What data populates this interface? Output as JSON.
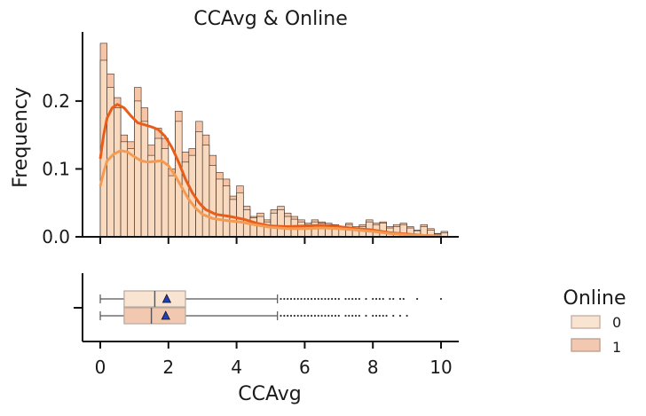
{
  "chart_data": {
    "type": "histogram+kde+boxplot",
    "title": "CCAvg & Online",
    "xlabel": "CCAvg",
    "ylabel": "Frequency",
    "xlim": [
      -0.5,
      10.5
    ],
    "ylim": [
      0,
      0.3
    ],
    "x_ticks": [
      0,
      2,
      4,
      6,
      8,
      10
    ],
    "y_ticks": [
      0.0,
      0.1,
      0.2
    ],
    "legend": {
      "title": "Online",
      "placement": "right",
      "entries": [
        {
          "label": "0",
          "color": "#f9e4d2"
        },
        {
          "label": "1",
          "color": "#f2c8b0"
        }
      ]
    },
    "histogram": {
      "bin_width": 0.2,
      "bin_start": 0,
      "series": [
        {
          "name": "1",
          "color": "#f7c2a0",
          "values": [
            0.285,
            0.24,
            0.205,
            0.15,
            0.14,
            0.22,
            0.19,
            0.135,
            0.16,
            0.145,
            0.1,
            0.185,
            0.125,
            0.13,
            0.17,
            0.15,
            0.12,
            0.095,
            0.085,
            0.06,
            0.075,
            0.045,
            0.03,
            0.035,
            0.025,
            0.04,
            0.045,
            0.035,
            0.03,
            0.025,
            0.02,
            0.025,
            0.022,
            0.02,
            0.018,
            0.015,
            0.02,
            0.015,
            0.018,
            0.025,
            0.02,
            0.022,
            0.015,
            0.018,
            0.02,
            0.015,
            0.01,
            0.018,
            0.012,
            0.005,
            0.008
          ]
        },
        {
          "name": "0",
          "color": "#f9e0c8",
          "values": [
            0.26,
            0.22,
            0.19,
            0.14,
            0.13,
            0.2,
            0.17,
            0.12,
            0.145,
            0.13,
            0.09,
            0.17,
            0.11,
            0.12,
            0.155,
            0.135,
            0.105,
            0.085,
            0.075,
            0.055,
            0.065,
            0.04,
            0.028,
            0.03,
            0.022,
            0.035,
            0.04,
            0.03,
            0.026,
            0.022,
            0.018,
            0.022,
            0.02,
            0.018,
            0.015,
            0.013,
            0.018,
            0.013,
            0.015,
            0.022,
            0.018,
            0.02,
            0.013,
            0.015,
            0.018,
            0.013,
            0.009,
            0.015,
            0.01,
            0.004,
            0.006
          ]
        }
      ]
    },
    "kde": [
      {
        "name": "1",
        "color": "#e85d1a",
        "points": [
          [
            0,
            0.115
          ],
          [
            0.1,
            0.15
          ],
          [
            0.2,
            0.175
          ],
          [
            0.35,
            0.19
          ],
          [
            0.5,
            0.195
          ],
          [
            0.7,
            0.19
          ],
          [
            0.9,
            0.178
          ],
          [
            1.1,
            0.168
          ],
          [
            1.3,
            0.165
          ],
          [
            1.5,
            0.162
          ],
          [
            1.7,
            0.158
          ],
          [
            1.9,
            0.148
          ],
          [
            2.1,
            0.132
          ],
          [
            2.3,
            0.11
          ],
          [
            2.5,
            0.085
          ],
          [
            2.7,
            0.065
          ],
          [
            2.9,
            0.05
          ],
          [
            3.1,
            0.04
          ],
          [
            3.4,
            0.033
          ],
          [
            3.8,
            0.03
          ],
          [
            4.2,
            0.026
          ],
          [
            4.6,
            0.02
          ],
          [
            5.0,
            0.016
          ],
          [
            5.5,
            0.015
          ],
          [
            6.0,
            0.016
          ],
          [
            6.5,
            0.017
          ],
          [
            7.0,
            0.015
          ],
          [
            7.5,
            0.012
          ],
          [
            8.0,
            0.01
          ],
          [
            8.5,
            0.006
          ],
          [
            9.0,
            0.004
          ],
          [
            9.5,
            0.002
          ],
          [
            10.0,
            0.001
          ]
        ]
      },
      {
        "name": "0",
        "color": "#f49a52",
        "points": [
          [
            0,
            0.075
          ],
          [
            0.1,
            0.095
          ],
          [
            0.2,
            0.112
          ],
          [
            0.4,
            0.122
          ],
          [
            0.6,
            0.127
          ],
          [
            0.8,
            0.125
          ],
          [
            1.0,
            0.118
          ],
          [
            1.2,
            0.112
          ],
          [
            1.4,
            0.11
          ],
          [
            1.6,
            0.111
          ],
          [
            1.8,
            0.112
          ],
          [
            2.0,
            0.105
          ],
          [
            2.2,
            0.09
          ],
          [
            2.4,
            0.072
          ],
          [
            2.6,
            0.055
          ],
          [
            2.8,
            0.042
          ],
          [
            3.0,
            0.033
          ],
          [
            3.3,
            0.027
          ],
          [
            3.7,
            0.024
          ],
          [
            4.1,
            0.022
          ],
          [
            4.5,
            0.018
          ],
          [
            5.0,
            0.014
          ],
          [
            5.5,
            0.012
          ],
          [
            6.0,
            0.012
          ],
          [
            6.5,
            0.013
          ],
          [
            7.0,
            0.012
          ],
          [
            7.5,
            0.01
          ],
          [
            8.0,
            0.008
          ],
          [
            8.5,
            0.005
          ],
          [
            9.0,
            0.003
          ],
          [
            9.5,
            0.002
          ],
          [
            10.0,
            0.001
          ]
        ]
      }
    ],
    "boxplot": [
      {
        "name": "0",
        "color": "#f9e4d2",
        "whisker_low": 0,
        "q1": 0.7,
        "median": 1.6,
        "q3": 2.5,
        "whisker_high": 5.2,
        "mean": 1.95,
        "outliers": [
          5.3,
          5.4,
          5.5,
          5.6,
          5.7,
          5.8,
          5.9,
          6.0,
          6.1,
          6.2,
          6.3,
          6.4,
          6.5,
          6.6,
          6.7,
          6.8,
          6.9,
          7.0,
          7.2,
          7.3,
          7.4,
          7.5,
          7.6,
          7.8,
          8.0,
          8.1,
          8.2,
          8.3,
          8.5,
          8.6,
          8.8,
          8.9,
          9.3,
          10.0
        ]
      },
      {
        "name": "1",
        "color": "#f2c8b0",
        "whisker_low": 0,
        "q1": 0.7,
        "median": 1.5,
        "q3": 2.5,
        "whisker_high": 5.2,
        "mean": 1.92,
        "outliers": [
          5.3,
          5.4,
          5.5,
          5.6,
          5.7,
          5.8,
          5.9,
          6.0,
          6.1,
          6.2,
          6.3,
          6.4,
          6.5,
          6.6,
          6.7,
          6.8,
          6.9,
          7.0,
          7.2,
          7.3,
          7.4,
          7.5,
          7.6,
          7.8,
          8.0,
          8.1,
          8.2,
          8.3,
          8.4,
          8.6,
          8.8,
          9.0
        ]
      }
    ]
  }
}
